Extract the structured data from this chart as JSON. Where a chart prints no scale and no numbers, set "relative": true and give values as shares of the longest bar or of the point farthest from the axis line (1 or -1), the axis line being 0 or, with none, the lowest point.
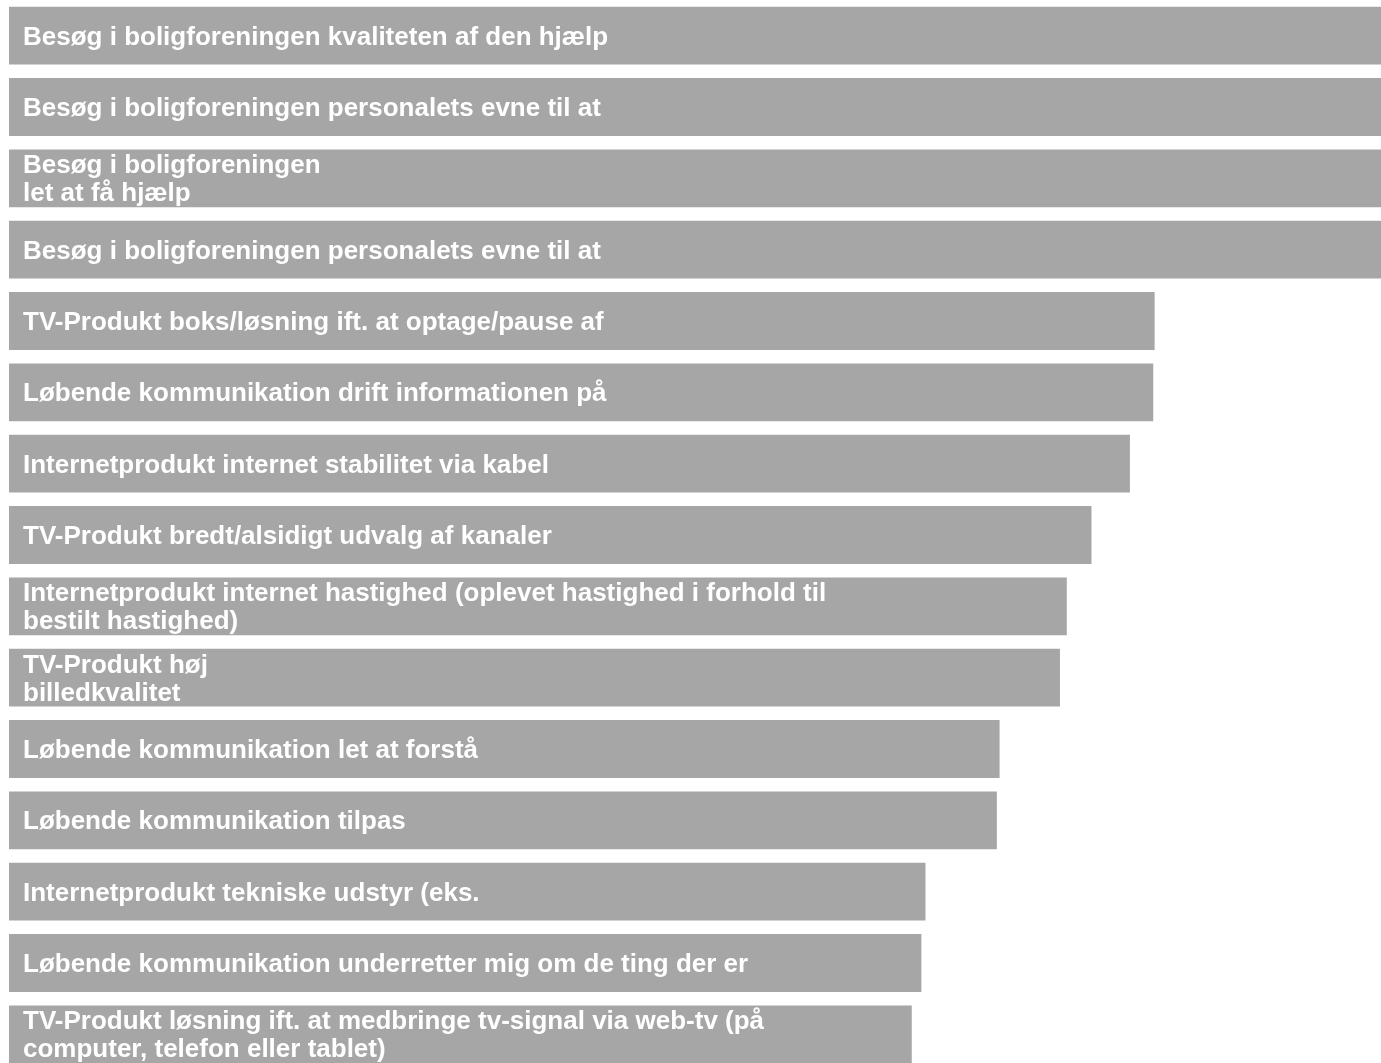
{
  "chart_data": {
    "type": "bar",
    "orientation": "horizontal",
    "relative": true,
    "color": "#a6a6a6",
    "categories": [
      "Besøg i boligforeningen kvaliteten af den hjælp",
      "Besøg i boligforeningen personalets evne til at",
      "Besøg i boligforeningen\nlet at få hjælp",
      "Besøg i boligforeningen personalets evne til at",
      "TV-Produkt boks/løsning ift. at optage/pause af",
      "Løbende kommunikation drift informationen på",
      "Internetprodukt internet stabilitet via kabel",
      "TV-Produkt bredt/alsidigt udvalg af kanaler",
      "Internetprodukt internet hastighed (oplevet hastighed i forhold til\nbestilt hastighed)",
      "TV-Produkt høj\nbilledkvalitet",
      "Løbende kommunikation let at forstå",
      "Løbende kommunikation tilpas",
      "Internetprodukt tekniske udstyr (eks.",
      "Løbende kommunikation underretter mig om de ting der er",
      "TV-Produkt løsning ift. at medbringe tv-signal via web-tv (på\ncomputer, telefon eller tablet)"
    ],
    "values": [
      1,
      1,
      1,
      1,
      0.835,
      0.834,
      0.817,
      0.789,
      0.771,
      0.766,
      0.722,
      0.72,
      0.668,
      0.665,
      0.658
    ]
  }
}
